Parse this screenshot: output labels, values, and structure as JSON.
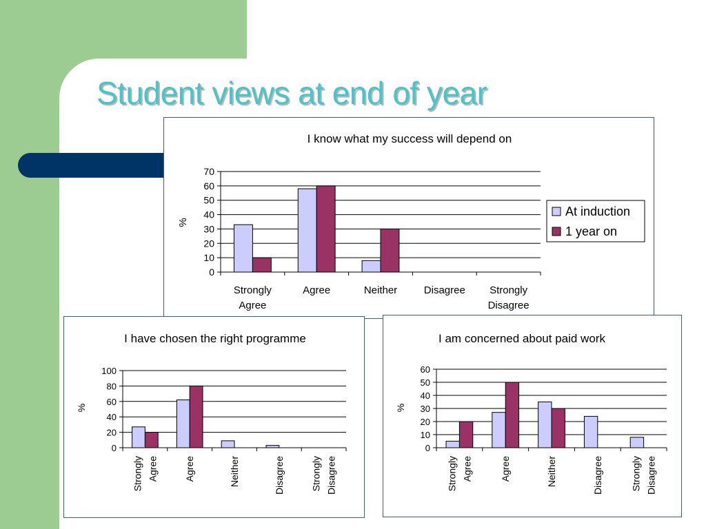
{
  "slide": {
    "title": "Student views at end of year"
  },
  "colors": {
    "at_induction": "#ccccff",
    "one_year_on": "#993366",
    "title": "#4cc3c9",
    "navy_bar": "#003366",
    "green_band": "#9dcc93"
  },
  "chart_data": [
    {
      "type": "bar",
      "title": "I know what my success will depend on",
      "ylabel": "%",
      "xlabel": "",
      "ylim": [
        0,
        70
      ],
      "yticks": [
        0,
        10,
        20,
        30,
        40,
        50,
        60,
        70
      ],
      "categories": [
        "Strongly Agree",
        "Agree",
        "Neither",
        "Disagree",
        "Strongly Disagree"
      ],
      "series": [
        {
          "name": "At induction",
          "values": [
            33,
            58,
            8,
            0,
            0
          ]
        },
        {
          "name": "1 year on",
          "values": [
            10,
            60,
            30,
            0,
            0
          ]
        }
      ],
      "grid": true,
      "legend": "right",
      "x_label_orientation": "horizontal"
    },
    {
      "type": "bar",
      "title": "I have chosen the right programme",
      "ylabel": "%",
      "xlabel": "",
      "ylim": [
        0,
        100
      ],
      "yticks": [
        0,
        20,
        40,
        60,
        80,
        100
      ],
      "categories": [
        "Strongly Agree",
        "Agree",
        "Neither",
        "Disagree",
        "Strongly Disagree"
      ],
      "series": [
        {
          "values": [
            27,
            62,
            9,
            3,
            0
          ]
        },
        {
          "values": [
            20,
            80,
            0,
            0,
            0
          ]
        }
      ],
      "grid": true,
      "legend": "none",
      "x_label_orientation": "vertical"
    },
    {
      "type": "bar",
      "title": "I am concerned about paid work",
      "ylabel": "%",
      "xlabel": "",
      "ylim": [
        0,
        60
      ],
      "yticks": [
        0,
        10,
        20,
        30,
        40,
        50,
        60
      ],
      "categories": [
        "Strongly Agree",
        "Agree",
        "Neither",
        "Disagree",
        "Strongly Disagree"
      ],
      "series": [
        {
          "values": [
            5,
            27,
            35,
            24,
            8
          ]
        },
        {
          "values": [
            20,
            50,
            30,
            0,
            0
          ]
        }
      ],
      "grid": true,
      "legend": "none",
      "x_label_orientation": "vertical"
    }
  ]
}
